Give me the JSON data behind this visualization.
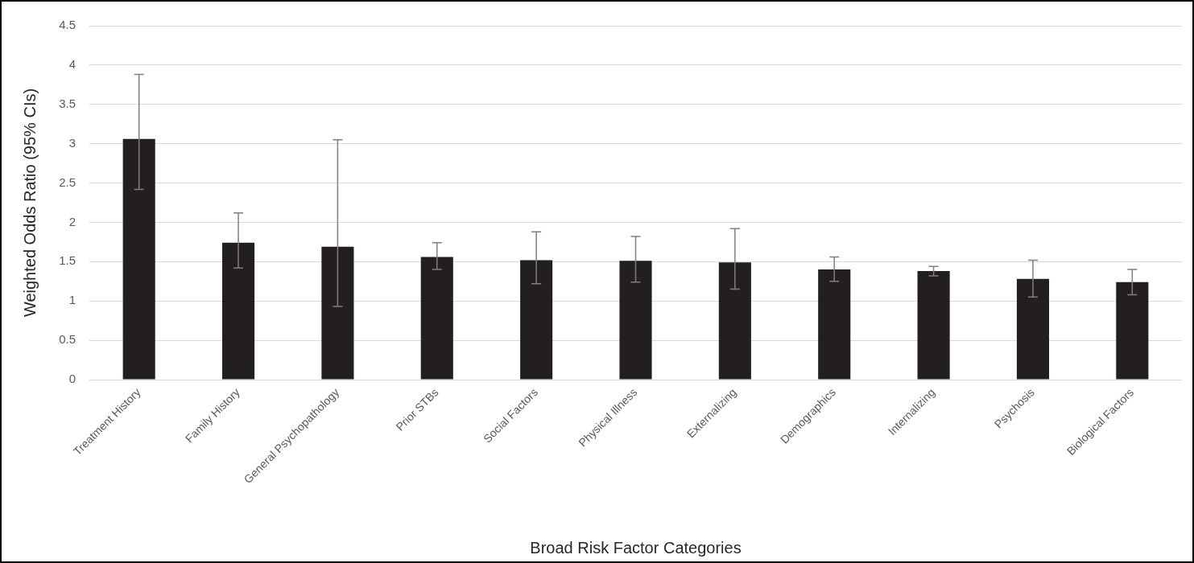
{
  "chart_data": {
    "type": "bar",
    "xlabel": "Broad Risk Factor Categories",
    "ylabel": "Weighted Odds Ratio (95% CIs)",
    "categories": [
      "Treatment History",
      "Family History",
      "General Psychopathology",
      "Prior STBs",
      "Social Factors",
      "Physical Illness",
      "Externalizing",
      "Demographics",
      "Internalizing",
      "Psychosis",
      "Biological Factors"
    ],
    "values": [
      3.06,
      1.74,
      1.69,
      1.56,
      1.52,
      1.51,
      1.49,
      1.4,
      1.38,
      1.28,
      1.24
    ],
    "errors": [
      [
        2.42,
        3.88
      ],
      [
        1.42,
        2.12
      ],
      [
        0.93,
        3.05
      ],
      [
        1.4,
        1.74
      ],
      [
        1.22,
        1.88
      ],
      [
        1.24,
        1.82
      ],
      [
        1.15,
        1.92
      ],
      [
        1.25,
        1.56
      ],
      [
        1.32,
        1.44
      ],
      [
        1.05,
        1.52
      ],
      [
        1.08,
        1.4
      ]
    ],
    "color": "#231f20",
    "ylim": [
      0,
      4.5
    ],
    "yticks": [
      0,
      0.5,
      1,
      1.5,
      2,
      2.5,
      3,
      3.5,
      4,
      4.5
    ],
    "grid": "y"
  }
}
